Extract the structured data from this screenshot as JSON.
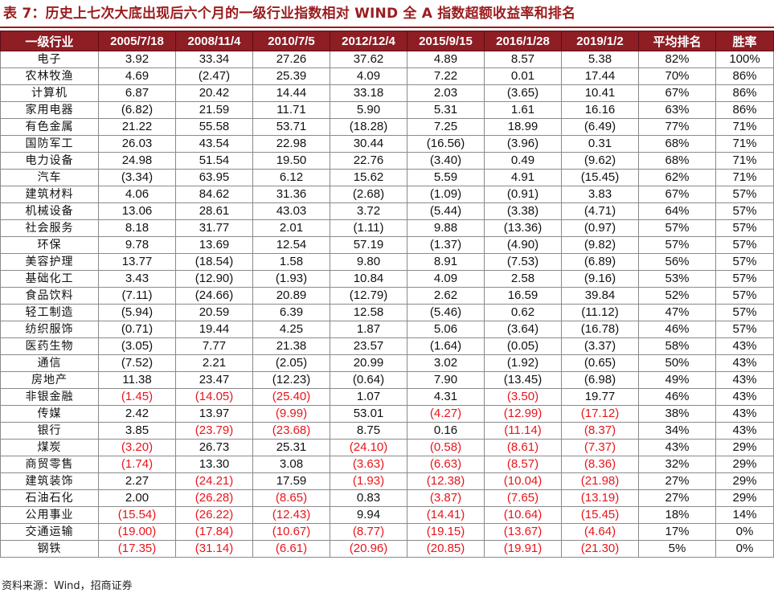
{
  "title": "表 7：历史上七次大底出现后六个月的一级行业指数相对 WIND 全 A 指数超额收益率和排名",
  "colors": {
    "header_bg": "#8e1d24",
    "title": "#9b1c1f",
    "negative": "#e8151b"
  },
  "table": {
    "headers": [
      "一级行业",
      "2005/7/18",
      "2008/11/4",
      "2010/7/5",
      "2012/12/4",
      "2015/9/15",
      "2016/1/28",
      "2019/1/2",
      "平均排名",
      "胜率"
    ],
    "rows": [
      [
        "电子",
        "3.92",
        "33.34",
        "27.26",
        "37.62",
        "4.89",
        "8.57",
        "5.38",
        "82%",
        "100%"
      ],
      [
        "农林牧渔",
        "4.69",
        "(2.47)",
        "25.39",
        "4.09",
        "7.22",
        "0.01",
        "17.44",
        "70%",
        "86%"
      ],
      [
        "计算机",
        "6.87",
        "20.42",
        "14.44",
        "33.18",
        "2.03",
        "(3.65)",
        "10.41",
        "67%",
        "86%"
      ],
      [
        "家用电器",
        "(6.82)",
        "21.59",
        "11.71",
        "5.90",
        "5.31",
        "1.61",
        "16.16",
        "63%",
        "86%"
      ],
      [
        "有色金属",
        "21.22",
        "55.58",
        "53.71",
        "(18.28)",
        "7.25",
        "18.99",
        "(6.49)",
        "77%",
        "71%"
      ],
      [
        "国防军工",
        "26.03",
        "43.54",
        "22.98",
        "30.44",
        "(16.56)",
        "(3.96)",
        "0.31",
        "68%",
        "71%"
      ],
      [
        "电力设备",
        "24.98",
        "51.54",
        "19.50",
        "22.76",
        "(3.40)",
        "0.49",
        "(9.62)",
        "68%",
        "71%"
      ],
      [
        "汽车",
        "(3.34)",
        "63.95",
        "6.12",
        "15.62",
        "5.59",
        "4.91",
        "(15.45)",
        "62%",
        "71%"
      ],
      [
        "建筑材料",
        "4.06",
        "84.62",
        "31.36",
        "(2.68)",
        "(1.09)",
        "(0.91)",
        "3.83",
        "67%",
        "57%"
      ],
      [
        "机械设备",
        "13.06",
        "28.61",
        "43.03",
        "3.72",
        "(5.44)",
        "(3.38)",
        "(4.71)",
        "64%",
        "57%"
      ],
      [
        "社会服务",
        "8.18",
        "31.77",
        "2.01",
        "(1.11)",
        "9.88",
        "(13.36)",
        "(0.97)",
        "57%",
        "57%"
      ],
      [
        "环保",
        "9.78",
        "13.69",
        "12.54",
        "57.19",
        "(1.37)",
        "(4.90)",
        "(9.82)",
        "57%",
        "57%"
      ],
      [
        "美容护理",
        "13.77",
        "(18.54)",
        "1.58",
        "9.80",
        "8.91",
        "(7.53)",
        "(6.89)",
        "56%",
        "57%"
      ],
      [
        "基础化工",
        "3.43",
        "(12.90)",
        "(1.93)",
        "10.84",
        "4.09",
        "2.58",
        "(9.16)",
        "53%",
        "57%"
      ],
      [
        "食品饮料",
        "(7.11)",
        "(24.66)",
        "20.89",
        "(12.79)",
        "2.62",
        "16.59",
        "39.84",
        "52%",
        "57%"
      ],
      [
        "轻工制造",
        "(5.94)",
        "20.59",
        "6.39",
        "12.58",
        "(5.46)",
        "0.62",
        "(11.12)",
        "47%",
        "57%"
      ],
      [
        "纺织服饰",
        "(0.71)",
        "19.44",
        "4.25",
        "1.87",
        "5.06",
        "(3.64)",
        "(16.78)",
        "46%",
        "57%"
      ],
      [
        "医药生物",
        "(3.05)",
        "7.77",
        "21.38",
        "23.57",
        "(1.64)",
        "(0.05)",
        "(3.37)",
        "58%",
        "43%"
      ],
      [
        "通信",
        "(7.52)",
        "2.21",
        "(2.05)",
        "20.99",
        "3.02",
        "(1.92)",
        "(0.65)",
        "50%",
        "43%"
      ],
      [
        "房地产",
        "11.38",
        "23.47",
        "(12.23)",
        "(0.64)",
        "7.90",
        "(13.45)",
        "(6.98)",
        "49%",
        "43%"
      ],
      [
        "非银金融",
        "(1.45)",
        "(14.05)",
        "(25.40)",
        "1.07",
        "4.31",
        "(3.50)",
        "19.77",
        "46%",
        "43%"
      ],
      [
        "传媒",
        "2.42",
        "13.97",
        "(9.99)",
        "53.01",
        "(4.27)",
        "(12.99)",
        "(17.12)",
        "38%",
        "43%"
      ],
      [
        "银行",
        "3.85",
        "(23.79)",
        "(23.68)",
        "8.75",
        "0.16",
        "(11.14)",
        "(8.37)",
        "34%",
        "43%"
      ],
      [
        "煤炭",
        "(3.20)",
        "26.73",
        "25.31",
        "(24.10)",
        "(0.58)",
        "(8.61)",
        "(7.37)",
        "43%",
        "29%"
      ],
      [
        "商贸零售",
        "(1.74)",
        "13.30",
        "3.08",
        "(3.63)",
        "(6.63)",
        "(8.57)",
        "(8.36)",
        "32%",
        "29%"
      ],
      [
        "建筑装饰",
        "2.27",
        "(24.21)",
        "17.59",
        "(1.93)",
        "(12.38)",
        "(10.04)",
        "(21.98)",
        "27%",
        "29%"
      ],
      [
        "石油石化",
        "2.00",
        "(26.28)",
        "(8.65)",
        "0.83",
        "(3.87)",
        "(7.65)",
        "(13.19)",
        "27%",
        "29%"
      ],
      [
        "公用事业",
        "(15.54)",
        "(26.22)",
        "(12.43)",
        "9.94",
        "(14.41)",
        "(10.64)",
        "(15.45)",
        "18%",
        "14%"
      ],
      [
        "交通运输",
        "(19.00)",
        "(17.84)",
        "(10.67)",
        "(8.77)",
        "(19.15)",
        "(13.67)",
        "(4.64)",
        "17%",
        "0%"
      ],
      [
        "钢铁",
        "(17.35)",
        "(31.14)",
        "(6.61)",
        "(20.96)",
        "(20.85)",
        "(19.91)",
        "(21.30)",
        "5%",
        "0%"
      ]
    ],
    "red_from_row": 20
  },
  "source": "资料来源：Wind，招商证券"
}
